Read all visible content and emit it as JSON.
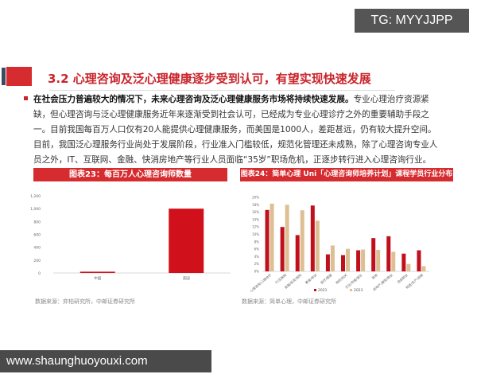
{
  "watermark": "TG: MYYJJPP",
  "section": {
    "title": "3.2 心理咨询及泛心理健康逐步受到认可，有望实现快速发展"
  },
  "paragraph": {
    "bold": "在社会压力普遍较大的情况下，未来心理咨询及泛心理健康服务市场将持续快速发展。",
    "text": "专业心理治疗资源紧缺，但心理咨询与泛心理健康服务近年来逐渐受到社会认可，已经成为专业心理诊疗之外的重要辅助手段之一。目前我国每百万人口仅有20人能提供心理健康服务，而美国是1000人，差距甚远，仍有较大提升空间。目前，我国泛心理服务行业尚处于发展阶段，行业准入门槛较低，规范化管理还未成熟，除了心理咨询专业人员之外，IT、互联网、金融、快消房地产等行业人员面临“35岁”职场危机，正逐步转行进入心理咨询行业。"
  },
  "chart_data": [
    {
      "type": "bar",
      "title": "图表23：每百万人心理咨询师数量",
      "categories": [
        "中国",
        "美国"
      ],
      "values": [
        20,
        1000
      ],
      "ylim": [
        0,
        1200
      ],
      "yticks": [
        "0",
        "200",
        "400",
        "600",
        "800",
        "1,000",
        "1,200"
      ],
      "colors": [
        "#d0101a"
      ],
      "source": "数据来源：弈柏研究所，中邮证券研究所"
    },
    {
      "type": "bar",
      "title": "图表24：简单心理 Uni「心理咨询师培养计划」课程学员行业分布",
      "categories": [
        "心理咨询/心理治疗",
        "IT/互联网",
        "金融/投资/保险",
        "教育/培训",
        "医疗/健康",
        "政府/机关",
        "文化/传媒/娱乐",
        "其他",
        "房地产/建筑/物业",
        "自由职业",
        "制造/生产/运输"
      ],
      "series": [
        {
          "name": "2021",
          "color": "#c0101c",
          "values": [
            16.6,
            12,
            9.8,
            17.8,
            4.6,
            4.4,
            5.7,
            9,
            9.5,
            4.8,
            5.7
          ]
        },
        {
          "name": "2023",
          "color": "#ddbf94",
          "values": [
            18.3,
            18,
            16.5,
            13.7,
            7,
            6.1,
            5.9,
            5.8,
            5.3,
            2,
            1.4
          ]
        }
      ],
      "ylim": [
        0,
        20
      ],
      "yticks": [
        "0%",
        "2%",
        "4%",
        "6%",
        "8%",
        "10%",
        "12%",
        "14%",
        "16%",
        "18%",
        "20%"
      ],
      "legend": "bottom",
      "source": "数据来源：简单心理，中邮证券研究所"
    }
  ],
  "footer": "www.shaunghuoyouxi.com"
}
